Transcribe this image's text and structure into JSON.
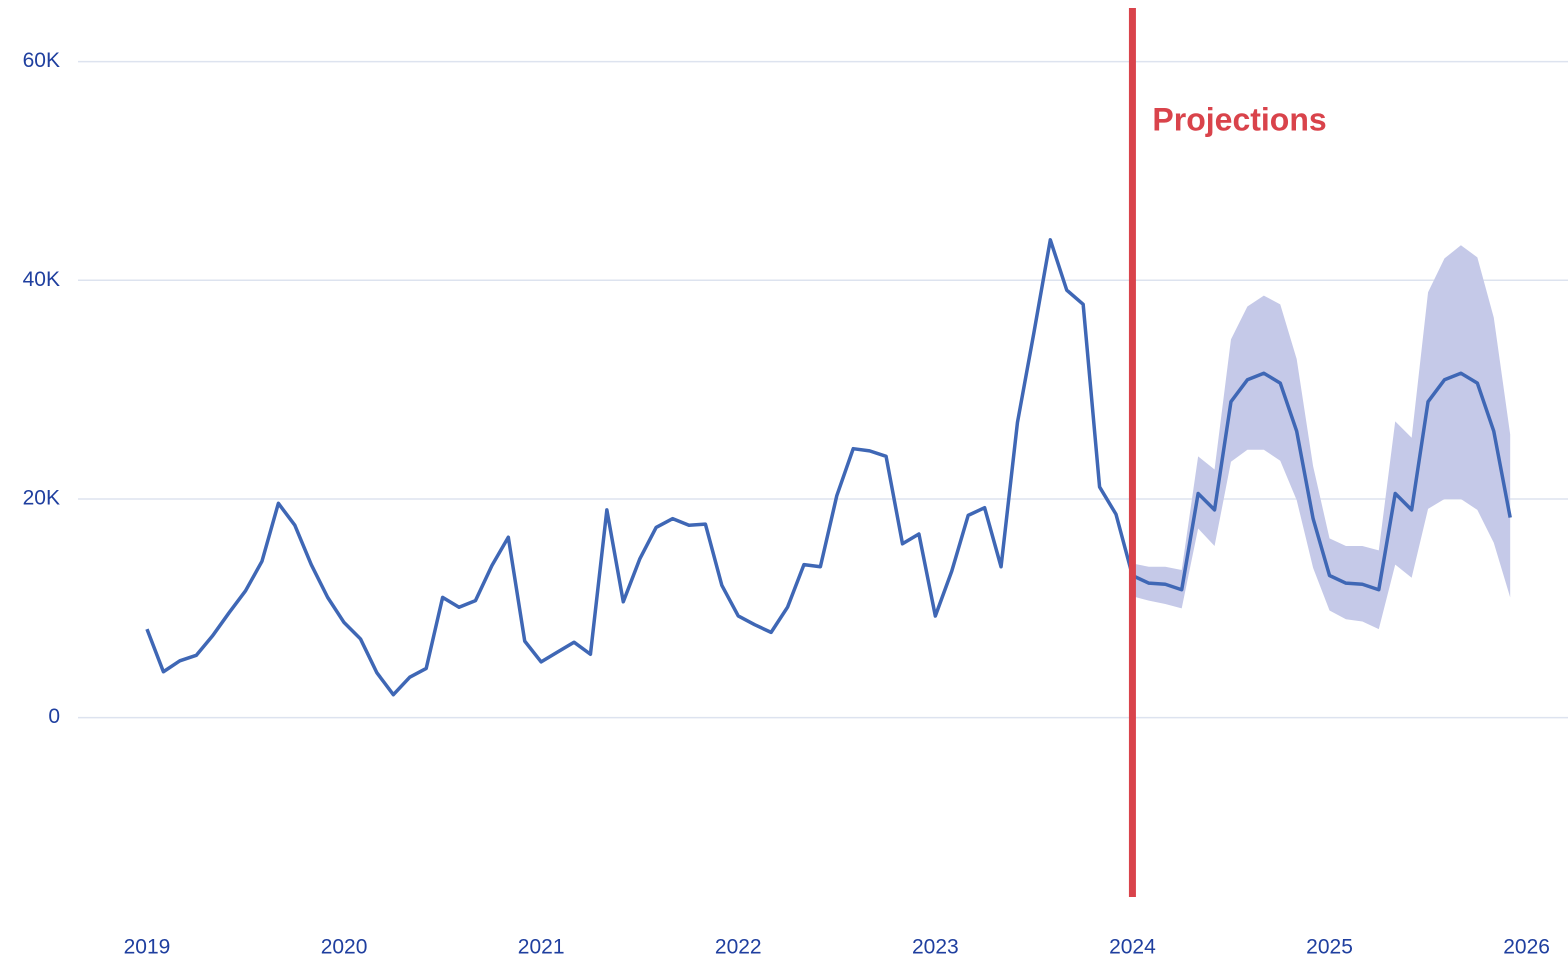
{
  "chart_data": {
    "type": "line",
    "x": [
      "2019-01",
      "2019-02",
      "2019-03",
      "2019-04",
      "2019-05",
      "2019-06",
      "2019-07",
      "2019-08",
      "2019-09",
      "2019-10",
      "2019-11",
      "2019-12",
      "2020-01",
      "2020-02",
      "2020-03",
      "2020-04",
      "2020-05",
      "2020-06",
      "2020-07",
      "2020-08",
      "2020-09",
      "2020-10",
      "2020-11",
      "2020-12",
      "2021-01",
      "2021-02",
      "2021-03",
      "2021-04",
      "2021-05",
      "2021-06",
      "2021-07",
      "2021-08",
      "2021-09",
      "2021-10",
      "2021-11",
      "2021-12",
      "2022-01",
      "2022-02",
      "2022-03",
      "2022-04",
      "2022-05",
      "2022-06",
      "2022-07",
      "2022-08",
      "2022-09",
      "2022-10",
      "2022-11",
      "2022-12",
      "2023-01",
      "2023-02",
      "2023-03",
      "2023-04",
      "2023-05",
      "2023-06",
      "2023-07",
      "2023-08",
      "2023-09",
      "2023-10",
      "2023-11",
      "2023-12",
      "2024-01",
      "2024-02",
      "2024-03",
      "2024-04",
      "2024-05",
      "2024-06",
      "2024-07",
      "2024-08",
      "2024-09",
      "2024-10",
      "2024-11",
      "2024-12",
      "2025-01",
      "2025-02",
      "2025-03",
      "2025-04",
      "2025-05",
      "2025-06",
      "2025-07",
      "2025-08",
      "2025-09",
      "2025-10",
      "2025-11",
      "2025-12"
    ],
    "values": [
      8100,
      4200,
      5200,
      5700,
      7500,
      9600,
      11600,
      14300,
      19600,
      17600,
      14000,
      11000,
      8700,
      7200,
      4100,
      2100,
      3700,
      4500,
      11000,
      10100,
      10700,
      13900,
      16500,
      7000,
      5100,
      6000,
      6900,
      5800,
      19000,
      10600,
      14500,
      17400,
      18200,
      17600,
      17700,
      12100,
      9300,
      8500,
      7800,
      10100,
      14000,
      13800,
      20300,
      24600,
      24400,
      23900,
      15900,
      16800,
      9300,
      13400,
      18500,
      19200,
      13800,
      27000,
      35200,
      43700,
      39100,
      37800,
      21100,
      18600,
      13000,
      12300,
      12200,
      11700,
      20500,
      19000,
      28900,
      30900,
      31500,
      30600,
      26200,
      18200,
      13000,
      12300,
      12200,
      11700,
      20500,
      19000,
      28900,
      30900,
      31500,
      30600,
      26200,
      18300
    ],
    "upper": [
      null,
      null,
      null,
      null,
      null,
      null,
      null,
      null,
      null,
      null,
      null,
      null,
      null,
      null,
      null,
      null,
      null,
      null,
      null,
      null,
      null,
      null,
      null,
      null,
      null,
      null,
      null,
      null,
      null,
      null,
      null,
      null,
      null,
      null,
      null,
      null,
      null,
      null,
      null,
      null,
      null,
      null,
      null,
      null,
      null,
      null,
      null,
      null,
      null,
      null,
      null,
      null,
      null,
      null,
      null,
      null,
      null,
      null,
      null,
      null,
      14100,
      13800,
      13800,
      13500,
      23900,
      22700,
      34600,
      37600,
      38600,
      37800,
      32800,
      23000,
      16400,
      15700,
      15700,
      15300,
      27100,
      25600,
      38900,
      42000,
      43200,
      42100,
      36600,
      25900
    ],
    "lower": [
      null,
      null,
      null,
      null,
      null,
      null,
      null,
      null,
      null,
      null,
      null,
      null,
      null,
      null,
      null,
      null,
      null,
      null,
      null,
      null,
      null,
      null,
      null,
      null,
      null,
      null,
      null,
      null,
      null,
      null,
      null,
      null,
      null,
      null,
      null,
      null,
      null,
      null,
      null,
      null,
      null,
      null,
      null,
      null,
      null,
      null,
      null,
      null,
      null,
      null,
      null,
      null,
      null,
      null,
      null,
      null,
      null,
      null,
      null,
      null,
      11100,
      10700,
      10400,
      10000,
      17300,
      15700,
      23400,
      24500,
      24500,
      23500,
      19900,
      13700,
      9800,
      9000,
      8800,
      8100,
      14000,
      12800,
      19100,
      20000,
      20000,
      19000,
      16000,
      11000
    ],
    "color": "#3f67b5",
    "band_color": "#c5c9e8",
    "xlim": [
      2018.65,
      2026.21
    ],
    "xticks": [
      2019,
      2020,
      2021,
      2022,
      2023,
      2024,
      2025,
      2026
    ],
    "ylim": [
      -16400,
      64900
    ],
    "yticks": [
      0,
      {
        "value": 20000,
        "label": "20K"
      },
      {
        "value": 40000,
        "label": "40K"
      },
      {
        "value": 60000,
        "label": "60K"
      }
    ],
    "grid": true,
    "annotations": [
      {
        "x": "2024-01",
        "text": "Projections",
        "color": "#d9434b"
      }
    ]
  }
}
